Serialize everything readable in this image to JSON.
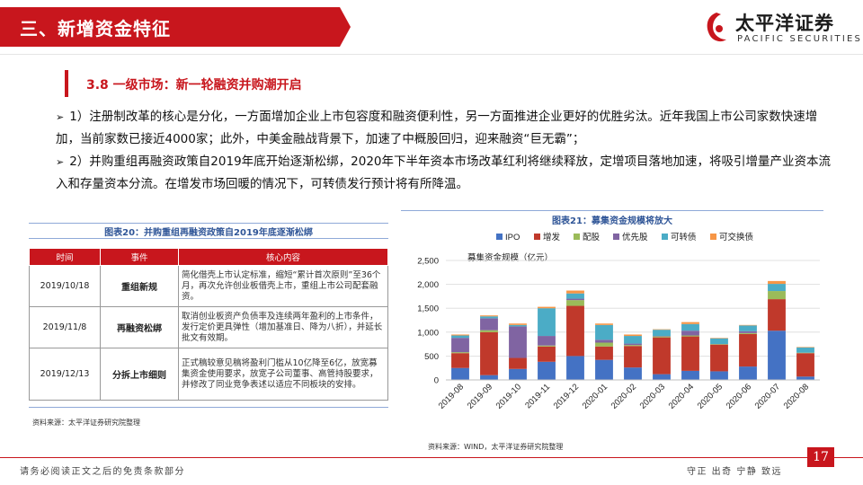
{
  "header": {
    "title": "三、新增资金特征",
    "logo_cn": "太平洋证券",
    "logo_en": "PACIFIC SECURITIES"
  },
  "section": {
    "title": "3.8 一级市场：新一轮融资并购潮开启"
  },
  "bullets": [
    {
      "text": "1）注册制改革的核心是分化，一方面增加企业上市包容度和融资便利性，另一方面推进企业更好的优胜劣汰。近年我国上市公司家数快速增加，当前家数已接近4000家；此外，中美金融战背景下，加速了中概股回归，迎来融资“巨无霸”；"
    },
    {
      "text": "2）并购重组再融资政策自2019年底开始逐渐松绑，2020年下半年资本市场改革红利将继续释放，定增项目落地加速，将吸引增量产业资本流入和存量资本分流。在增发市场回暖的情况下，可转债发行预计将有所降温。"
    }
  ],
  "table_block": {
    "caption": "图表20：并购重组再融资政策自2019年底逐渐松绑",
    "headers": [
      "时间",
      "事件",
      "核心内容"
    ],
    "rows": [
      {
        "date": "2019/10/18",
        "event": "重组新规",
        "content": "简化借壳上市认定标准，缩短“累计首次原则”至36个月，再次允许创业板借壳上市，重组上市公司配套融资。"
      },
      {
        "date": "2019/11/8",
        "event": "再融资松绑",
        "content": "取消创业板资产负债率及连续两年盈利的上市条件，发行定价更具弹性（增加基准日、降为八折），并延长批文有效期。"
      },
      {
        "date": "2019/12/13",
        "event": "分拆上市细则",
        "content": "正式稿较意见稿将盈利门槛从10亿降至6亿，放宽募集资金使用要求，放宽子公司董事、高管持股要求，并修改了同业竞争表述以适应不同板块的安排。"
      }
    ],
    "source": "资料来源：太平洋证券研究院整理"
  },
  "chart_block": {
    "caption": "图表21：募集资金规模将放大",
    "source": "资料来源：WIND，太平洋证券研究院整理"
  },
  "chart_data": {
    "type": "bar",
    "stacked": true,
    "title": "",
    "ylabel": "募集资金规模（亿元）",
    "xlabel": "",
    "ylim": [
      0,
      2500
    ],
    "yticks": [
      "0",
      "500",
      "1,000",
      "1,500",
      "2,000",
      "2,500"
    ],
    "ytick_values": [
      0,
      500,
      1000,
      1500,
      2000,
      2500
    ],
    "legend_position": "top",
    "categories": [
      "2019-08",
      "2019-09",
      "2019-10",
      "2019-11",
      "2019-12",
      "2020-01",
      "2020-02",
      "2020-03",
      "2020-04",
      "2020-05",
      "2020-06",
      "2020-07",
      "2020-08"
    ],
    "series": [
      {
        "name": "IPO",
        "color": "#4472c4",
        "values": [
          250,
          100,
          230,
          380,
          500,
          420,
          260,
          120,
          190,
          180,
          280,
          1030,
          70
        ]
      },
      {
        "name": "增发",
        "color": "#c0392b",
        "values": [
          310,
          900,
          230,
          320,
          1050,
          280,
          450,
          770,
          720,
          560,
          680,
          660,
          490
        ]
      },
      {
        "name": "配股",
        "color": "#9bbb59",
        "values": [
          20,
          40,
          0,
          20,
          120,
          80,
          20,
          20,
          20,
          10,
          20,
          170,
          10
        ]
      },
      {
        "name": "优先股",
        "color": "#8064a2",
        "values": [
          300,
          250,
          660,
          200,
          30,
          60,
          30,
          10,
          100,
          0,
          40,
          0,
          0
        ]
      },
      {
        "name": "可转债",
        "color": "#4bacc6",
        "values": [
          50,
          40,
          30,
          580,
          110,
          310,
          160,
          130,
          140,
          120,
          120,
          150,
          110
        ]
      },
      {
        "name": "可交换债",
        "color": "#f79646",
        "values": [
          20,
          20,
          30,
          30,
          60,
          30,
          30,
          10,
          40,
          10,
          10,
          60,
          10
        ]
      }
    ]
  },
  "footer": {
    "disclaimer": "请务必阅读正文之后的免责条款部分",
    "motto": "守正  出奇  宁静  致远",
    "page": "17"
  }
}
